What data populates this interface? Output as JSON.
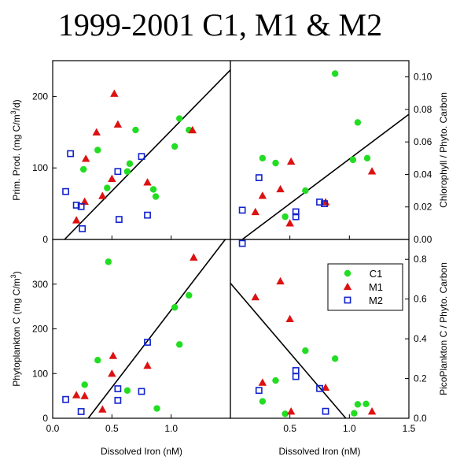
{
  "title": "1999-2001 C1, M1 & M2",
  "colors": {
    "C1": "#22dd22",
    "M1": "#dd1111",
    "M2": "#1122cc",
    "line": "#000000"
  },
  "legend": {
    "location": "inside lower-right panel, top-right",
    "entries": [
      {
        "name": "C1",
        "marker": "circle",
        "color": "#22dd22"
      },
      {
        "name": "M1",
        "marker": "triangle",
        "color": "#dd1111"
      },
      {
        "name": "M2",
        "marker": "open-square",
        "color": "#1122cc"
      }
    ]
  },
  "chart_data": [
    {
      "type": "scatter",
      "panel": "top-left",
      "xlabel": "",
      "ylabel": "Prim. Prod. (mg C/m3/d)",
      "ylabel_main": "Prim. Prod. (mg C/m",
      "ylabel_sup": "3",
      "ylabel_tail": "/d)",
      "xlim": [
        0,
        1.5
      ],
      "ylim": [
        0,
        250
      ],
      "xticks": [],
      "yticks": [
        0,
        100,
        200
      ],
      "fit_line": [
        [
          0.1,
          0
        ],
        [
          1.5,
          237
        ]
      ],
      "series": [
        {
          "name": "C1",
          "x": [
            0.26,
            0.38,
            0.46,
            0.63,
            0.65,
            0.7,
            0.85,
            0.87,
            1.03,
            1.07,
            1.15
          ],
          "y": [
            98,
            125,
            72,
            95,
            106,
            153,
            70,
            60,
            130,
            169,
            153
          ]
        },
        {
          "name": "M1",
          "x": [
            0.2,
            0.27,
            0.28,
            0.37,
            0.42,
            0.5,
            0.52,
            0.55,
            0.8,
            1.18
          ],
          "y": [
            27,
            53,
            113,
            150,
            61,
            85,
            204,
            161,
            80,
            153
          ]
        },
        {
          "name": "M2",
          "x": [
            0.11,
            0.15,
            0.2,
            0.24,
            0.25,
            0.55,
            0.56,
            0.75,
            0.8
          ],
          "y": [
            67,
            120,
            48,
            46,
            15,
            95,
            28,
            116,
            34
          ]
        }
      ]
    },
    {
      "type": "scatter",
      "panel": "top-right",
      "xlabel": "",
      "ylabel": "Chlorophyll / Phyto. Carbon",
      "xlim": [
        0,
        1.5
      ],
      "ylim": [
        0,
        0.11
      ],
      "xticks": [],
      "yticks": [
        0.0,
        0.02,
        0.04,
        0.06,
        0.08,
        0.1
      ],
      "ytick_labels": [
        "0.00",
        "0.02",
        "0.04",
        "0.06",
        "0.08",
        "0.10"
      ],
      "fit_line": [
        [
          0.1,
          0
        ],
        [
          1.5,
          0.077
        ]
      ],
      "series": [
        {
          "name": "C1",
          "x": [
            0.27,
            0.38,
            0.46,
            0.63,
            0.88,
            1.03,
            1.07,
            1.15
          ],
          "y": [
            0.05,
            0.047,
            0.014,
            0.03,
            0.102,
            0.049,
            0.072,
            0.05
          ]
        },
        {
          "name": "M1",
          "x": [
            0.21,
            0.27,
            0.42,
            0.5,
            0.51,
            0.8,
            1.19
          ],
          "y": [
            0.017,
            0.027,
            0.031,
            0.01,
            0.048,
            0.023,
            0.042
          ]
        },
        {
          "name": "M2",
          "x": [
            0.1,
            0.24,
            0.55,
            0.55,
            0.75,
            0.79
          ],
          "y": [
            0.018,
            0.038,
            0.017,
            0.014,
            0.023,
            0.022
          ]
        }
      ]
    },
    {
      "type": "scatter",
      "panel": "bottom-left",
      "xlabel": "Dissolved Iron (nM)",
      "ylabel": "Phytoplankton C (mg C/m3)",
      "ylabel_main": "Phytoplankton C (mg C/m",
      "ylabel_sup": "3",
      "ylabel_tail": ")",
      "xlim": [
        0,
        1.5
      ],
      "ylim": [
        0,
        400
      ],
      "xticks": [
        0.0,
        0.5,
        1.0
      ],
      "xtick_labels": [
        "0.0",
        "0.5",
        "1.0"
      ],
      "yticks": [
        0,
        100,
        200,
        300
      ],
      "fit_line": [
        [
          0.3,
          0
        ],
        [
          1.5,
          415
        ]
      ],
      "series": [
        {
          "name": "C1",
          "x": [
            0.27,
            0.38,
            0.47,
            0.63,
            0.88,
            1.03,
            1.07,
            1.15
          ],
          "y": [
            75,
            130,
            350,
            62,
            22,
            248,
            165,
            275
          ]
        },
        {
          "name": "M1",
          "x": [
            0.2,
            0.27,
            0.42,
            0.5,
            0.51,
            0.8,
            1.19
          ],
          "y": [
            52,
            50,
            20,
            100,
            140,
            118,
            360
          ]
        },
        {
          "name": "M2",
          "x": [
            0.11,
            0.24,
            0.55,
            0.55,
            0.75,
            0.8
          ],
          "y": [
            42,
            15,
            66,
            40,
            60,
            170
          ]
        }
      ]
    },
    {
      "type": "scatter",
      "panel": "bottom-right",
      "xlabel": "Dissolved Iron (nM)",
      "ylabel": "PicoPlankton C / Phyto. Carbon",
      "xlim": [
        0,
        1.5
      ],
      "ylim": [
        0,
        0.9
      ],
      "xticks": [
        0.5,
        1.0,
        1.5
      ],
      "xtick_labels": [
        "0.5",
        "1.0",
        "1.5"
      ],
      "yticks": [
        0.0,
        0.2,
        0.4,
        0.6,
        0.8
      ],
      "ytick_labels": [
        "0.0",
        "0.2",
        "0.4",
        "0.6",
        "0.8"
      ],
      "fit_line": [
        [
          0,
          0.68
        ],
        [
          0.97,
          0
        ]
      ],
      "series": [
        {
          "name": "C1",
          "x": [
            0.27,
            0.38,
            0.46,
            0.63,
            0.88,
            1.04,
            1.07,
            1.14
          ],
          "y": [
            0.085,
            0.19,
            0.022,
            0.34,
            0.3,
            0.025,
            0.07,
            0.072
          ]
        },
        {
          "name": "M1",
          "x": [
            0.21,
            0.27,
            0.42,
            0.5,
            0.51,
            0.8,
            1.19
          ],
          "y": [
            0.61,
            0.18,
            0.69,
            0.5,
            0.035,
            0.155,
            0.035
          ]
        },
        {
          "name": "M2",
          "x": [
            0.1,
            0.24,
            0.55,
            0.55,
            0.75,
            0.8
          ],
          "y": [
            0.88,
            0.14,
            0.24,
            0.21,
            0.15,
            0.035
          ]
        }
      ]
    }
  ]
}
